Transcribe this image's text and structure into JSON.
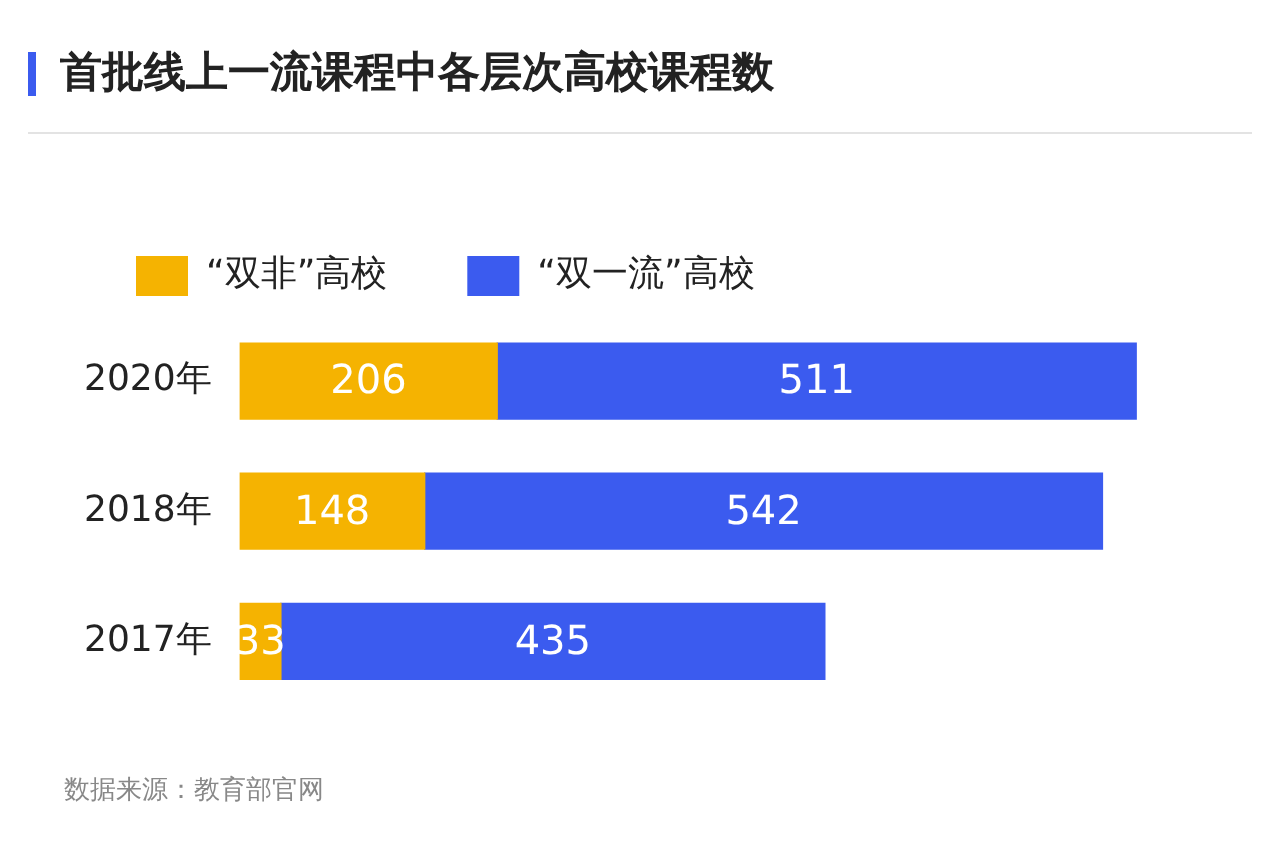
{
  "chart_data": {
    "type": "bar",
    "orientation": "horizontal",
    "stacked": true,
    "title": "首批线上一流课程中各层次高校课程数",
    "categories": [
      "2020年",
      "2018年",
      "2017年"
    ],
    "series": [
      {
        "name": "“双非”高校",
        "color": "#f5b301",
        "values": [
          206,
          148,
          33
        ]
      },
      {
        "name": "“双一流”高校",
        "color": "#3b5bef",
        "values": [
          511,
          542,
          435
        ]
      }
    ],
    "data_labels": true,
    "legend": "top left",
    "grid": false,
    "tick_labels": "y",
    "annotations": [
      "数据来源：教育部官网"
    ]
  }
}
